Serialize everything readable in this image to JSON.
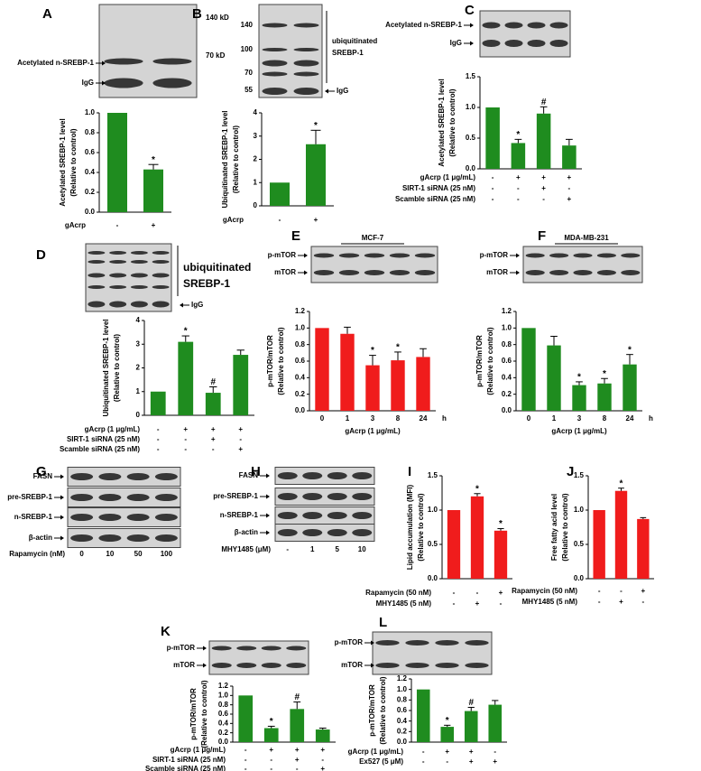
{
  "chart_data": [
    {
      "type": "bar",
      "label": "A",
      "blot_labels": [
        "140 kD",
        "70 kD",
        "Acetylated n-SREBP-1",
        "IgG"
      ],
      "ylabel": [
        "Acetylated SREBP-1 level",
        "(Relative to control)"
      ],
      "color": "#1f8c1f",
      "values": [
        1,
        0.43
      ],
      "errors": [
        null,
        0.05
      ],
      "markers": [
        null,
        "*"
      ],
      "conditions": [
        {
          "name": "gAcrp",
          "signs": [
            "-",
            "+"
          ]
        }
      ],
      "ylim": [
        0,
        1
      ],
      "yticks": [
        {
          "value": 0,
          "label": "0.0"
        },
        0.2,
        0.4,
        0.6,
        0.8,
        {
          "value": 1,
          "label": "1.0"
        }
      ]
    },
    {
      "type": "bar",
      "label": "B",
      "blot_labels": [
        "140",
        "100",
        "70",
        "55",
        "ubiquitinated",
        "SREBP-1",
        "IgG"
      ],
      "ylabel": [
        "Ubiquitinated SREBP-1 level",
        "(Relative to control)"
      ],
      "color": "#1f8c1f",
      "values": [
        1,
        2.65
      ],
      "errors": [
        null,
        0.6
      ],
      "markers": [
        null,
        "*"
      ],
      "conditions": [
        {
          "name": "gAcrp",
          "signs": [
            "-",
            "+"
          ]
        }
      ],
      "ylim": [
        0,
        4
      ],
      "yticks": [
        0,
        1,
        2,
        3,
        4
      ]
    },
    {
      "type": "bar",
      "label": "C",
      "blot_labels": [
        "Acetylated n-SREBP-1",
        "IgG"
      ],
      "ylabel": [
        "Acetylated SREBP-1 level",
        "(Relative to control)"
      ],
      "color": "#1f8c1f",
      "values": [
        1,
        0.42,
        0.9,
        0.38
      ],
      "errors": [
        null,
        0.06,
        0.11,
        0.1
      ],
      "markers": [
        null,
        "*",
        "#",
        null
      ],
      "conditions": [
        {
          "name": "gAcrp (1 μg/mL)",
          "signs": [
            "-",
            "+",
            "+",
            "+"
          ]
        },
        {
          "name": "SIRT-1 siRNA (25 nM)",
          "signs": [
            "-",
            "-",
            "+",
            "-"
          ]
        },
        {
          "name": "Scamble siRNA (25 nM)",
          "signs": [
            "-",
            "-",
            "-",
            "+"
          ]
        }
      ],
      "ylim": [
        0,
        1.5
      ],
      "yticks": [
        {
          "value": 0,
          "label": "0.0"
        },
        0.5,
        {
          "value": 1,
          "label": "1.0"
        },
        1.5
      ]
    },
    {
      "type": "bar",
      "label": "D",
      "blot_labels": [
        "ubiquitinated",
        "SREBP-1",
        "IgG"
      ],
      "ylabel": [
        "Ubiquitinated SREBP-1 level",
        "(Relative to control)"
      ],
      "color": "#1f8c1f",
      "values": [
        1,
        3.1,
        0.95,
        2.55
      ],
      "errors": [
        null,
        0.25,
        0.25,
        0.2
      ],
      "markers": [
        null,
        "*",
        "#",
        null
      ],
      "conditions": [
        {
          "name": "gAcrp (1 μg/mL)",
          "signs": [
            "-",
            "+",
            "+",
            "+"
          ]
        },
        {
          "name": "SIRT-1 siRNA (25 nM)",
          "signs": [
            "-",
            "-",
            "+",
            "-"
          ]
        },
        {
          "name": "Scamble siRNA (25 nM)",
          "signs": [
            "-",
            "-",
            "-",
            "+"
          ]
        }
      ],
      "ylim": [
        0,
        4
      ],
      "yticks": [
        0,
        1,
        2,
        3,
        4
      ]
    },
    {
      "type": "bar",
      "label": "E",
      "blot_title": "MCF-7",
      "blot_labels": [
        "p-mTOR",
        "mTOR"
      ],
      "ylabel": [
        "p-mTOR/mTOR",
        "(Relative to control)"
      ],
      "color": "#f01c1c",
      "categories": [
        "0",
        "1",
        "3",
        "8",
        "24"
      ],
      "unit": "h",
      "xlabel": "gAcrp (1 μg/mL)",
      "values": [
        1,
        0.93,
        0.55,
        0.61,
        0.65
      ],
      "errors": [
        null,
        0.08,
        0.12,
        0.1,
        0.1
      ],
      "markers": [
        null,
        null,
        "*",
        "*",
        null
      ],
      "ylim": [
        0,
        1.2
      ],
      "yticks": [
        {
          "value": 0,
          "label": "0.0"
        },
        0.2,
        0.4,
        0.6,
        0.8,
        {
          "value": 1,
          "label": "1.0"
        },
        1.2
      ]
    },
    {
      "type": "bar",
      "label": "F",
      "blot_title": "MDA-MB-231",
      "blot_labels": [
        "p-mTOR",
        "mTOR"
      ],
      "ylabel": [
        "p-mTOR/mTOR",
        "(Relative to control)"
      ],
      "color": "#1f8c1f",
      "categories": [
        "0",
        "1",
        "3",
        "8",
        "24"
      ],
      "unit": "h",
      "xlabel": "gAcrp (1 μg/mL)",
      "values": [
        1,
        0.79,
        0.31,
        0.33,
        0.56
      ],
      "errors": [
        null,
        0.11,
        0.04,
        0.06,
        0.12
      ],
      "markers": [
        null,
        null,
        "*",
        "*",
        "*"
      ],
      "ylim": [
        0,
        1.2
      ],
      "yticks": [
        {
          "value": 0,
          "label": "0.0"
        },
        0.2,
        0.4,
        0.6,
        0.8,
        {
          "value": 1,
          "label": "1.0"
        },
        1.2
      ]
    },
    {
      "type": "blot",
      "label": "G",
      "rows": [
        "FASN",
        "pre-SREBP-1",
        "n-SREBP-1",
        "β-actin"
      ],
      "xlabel": "Rapamycin (nM)",
      "lanes": [
        "0",
        "10",
        "50",
        "100"
      ]
    },
    {
      "type": "blot",
      "label": "H",
      "rows": [
        "FASN",
        "pre-SREBP-1",
        "n-SREBP-1",
        "β-actin"
      ],
      "xlabel": "MHY1485 (μM)",
      "lanes": [
        "-",
        "1",
        "5",
        "10"
      ]
    },
    {
      "type": "bar",
      "label": "I",
      "ylabel": [
        "Lipid accumulation (MFI)",
        "(Relative to control)"
      ],
      "color": "#f01c1c",
      "values": [
        1,
        1.2,
        0.7
      ],
      "errors": [
        null,
        0.04,
        0.03
      ],
      "markers": [
        null,
        "*",
        "*"
      ],
      "conditions": [
        {
          "name": "Rapamycin (50 nM)",
          "signs": [
            "-",
            "-",
            "+"
          ]
        },
        {
          "name": "MHY1485 (5 nM)",
          "signs": [
            "-",
            "+",
            "-"
          ]
        }
      ],
      "ylim": [
        0,
        1.5
      ],
      "yticks": [
        {
          "value": 0,
          "label": "0.0"
        },
        0.5,
        {
          "value": 1,
          "label": "1.0"
        },
        1.5
      ]
    },
    {
      "type": "bar",
      "label": "J",
      "ylabel": [
        "Free fatty acid level",
        "(Relative to control)"
      ],
      "color": "#f01c1c",
      "values": [
        1,
        1.28,
        0.87
      ],
      "errors": [
        null,
        0.04,
        0.02
      ],
      "markers": [
        null,
        "*",
        null
      ],
      "conditions": [
        {
          "name": "Rapamycin (50 nM)",
          "signs": [
            "-",
            "-",
            "+"
          ]
        },
        {
          "name": "MHY1485 (5 nM)",
          "signs": [
            "-",
            "+",
            "-"
          ]
        }
      ],
      "ylim": [
        0,
        1.5
      ],
      "yticks": [
        {
          "value": 0,
          "label": "0.0"
        },
        0.5,
        {
          "value": 1,
          "label": "1.0"
        },
        1.5
      ]
    },
    {
      "type": "bar",
      "label": "K",
      "blot_labels": [
        "p-mTOR",
        "mTOR"
      ],
      "ylabel": [
        "p-mTOR/mTOR",
        "(Relative to control)"
      ],
      "color": "#1f8c1f",
      "values": [
        1,
        0.3,
        0.71,
        0.27
      ],
      "errors": [
        null,
        0.04,
        0.15,
        0.03
      ],
      "markers": [
        null,
        "*",
        "#",
        null
      ],
      "conditions": [
        {
          "name": "gAcrp (1 μg/mL)",
          "signs": [
            "-",
            "+",
            "+",
            "+"
          ]
        },
        {
          "name": "SIRT-1 siRNA (25 nM)",
          "signs": [
            "-",
            "-",
            "+",
            "-"
          ]
        },
        {
          "name": "Scamble siRNA (25 nM)",
          "signs": [
            "-",
            "-",
            "-",
            "+"
          ]
        }
      ],
      "ylim": [
        0,
        1.2
      ],
      "yticks": [
        {
          "value": 0,
          "label": "0.0"
        },
        0.2,
        0.4,
        0.6,
        0.8,
        {
          "value": 1,
          "label": "1.0"
        },
        1.2
      ]
    },
    {
      "type": "bar",
      "label": "L",
      "blot_labels": [
        "p-mTOR",
        "mTOR"
      ],
      "ylabel": [
        "p-mTOR/mTOR",
        "(Relative to control)"
      ],
      "color": "#1f8c1f",
      "values": [
        1,
        0.29,
        0.59,
        0.71
      ],
      "errors": [
        null,
        0.03,
        0.07,
        0.08
      ],
      "markers": [
        null,
        "*",
        "#",
        null
      ],
      "conditions": [
        {
          "name": "gAcrp (1 μg/mL)",
          "signs": [
            "-",
            "+",
            "+",
            "-"
          ]
        },
        {
          "name": "Ex527 (5 μM)",
          "signs": [
            "-",
            "-",
            "+",
            "+"
          ]
        }
      ],
      "ylim": [
        0,
        1.2
      ],
      "yticks": [
        {
          "value": 0,
          "label": "0.0"
        },
        0.2,
        0.4,
        0.6,
        0.8,
        {
          "value": 1,
          "label": "1.0"
        },
        1.2
      ]
    }
  ]
}
